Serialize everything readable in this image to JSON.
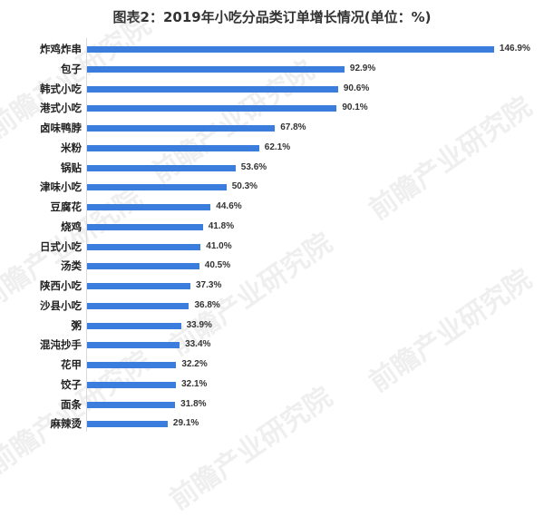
{
  "title": "图表2：2019年小吃分品类订单增长情况(单位：%)",
  "watermark": "前瞻产业研究院",
  "colors": {
    "bar": "#3b7ddd",
    "text": "#222222"
  },
  "chart_data": {
    "type": "bar",
    "orientation": "horizontal",
    "title": "图表2：2019年小吃分品类订单增长情况(单位：%)",
    "xlabel": "",
    "ylabel": "",
    "unit": "%",
    "grid": false,
    "legend": null,
    "categories": [
      "炸鸡炸串",
      "包子",
      "韩式小吃",
      "港式小吃",
      "卤味鸭脖",
      "米粉",
      "锅贴",
      "津味小吃",
      "豆腐花",
      "烧鸡",
      "日式小吃",
      "汤类",
      "陕西小吃",
      "沙县小吃",
      "粥",
      "混沌抄手",
      "花甲",
      "饺子",
      "面条",
      "麻辣烫"
    ],
    "values": [
      146.9,
      92.9,
      90.6,
      90.1,
      67.8,
      62.1,
      53.6,
      50.3,
      44.6,
      41.8,
      41.0,
      40.5,
      37.3,
      36.8,
      33.9,
      33.4,
      32.2,
      32.1,
      31.8,
      29.1
    ],
    "value_labels": [
      "146.9%",
      "92.9%",
      "90.6%",
      "90.1%",
      "67.8%",
      "62.1%",
      "53.6%",
      "50.3%",
      "44.6%",
      "41.8%",
      "41.0%",
      "40.5%",
      "37.3%",
      "36.8%",
      "33.9%",
      "33.4%",
      "32.2%",
      "32.1%",
      "31.8%",
      "29.1%"
    ]
  }
}
